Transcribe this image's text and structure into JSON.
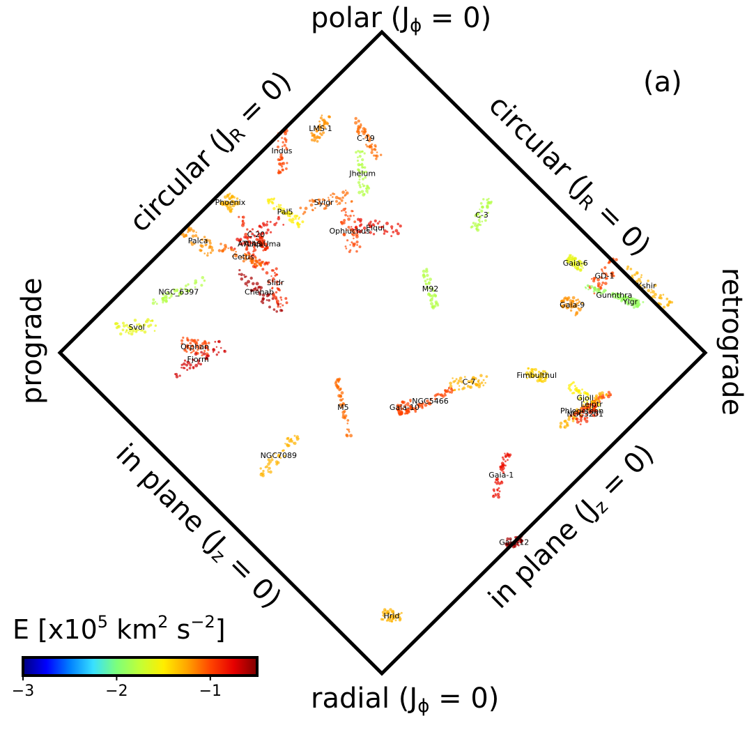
{
  "panel_label": "(a)",
  "edges": {
    "top": {
      "text": "polar",
      "expr": "J",
      "sub": "ϕ",
      "val": " = 0"
    },
    "bottom": {
      "text": "radial",
      "expr": "J",
      "sub": "ϕ",
      "val": " = 0"
    },
    "left": {
      "text": "prograde"
    },
    "right": {
      "text": "retrograde"
    },
    "upper_left": {
      "text": "circular",
      "expr": "J",
      "sub": "R",
      "val": " = 0"
    },
    "upper_right": {
      "text": "circular",
      "expr": "J",
      "sub": "R",
      "val": " = 0"
    },
    "lower_left": {
      "text": "in plane",
      "expr": "J",
      "sub": "z",
      "val": " = 0"
    },
    "lower_right": {
      "text": "in plane",
      "expr": "J",
      "sub": "z",
      "val": " = 0"
    }
  },
  "colorbar": {
    "title_main": "E [x10",
    "title_exp1": "5",
    "title_mid": " km",
    "title_exp2": "2",
    "title_mid2": " s",
    "title_exp3": "−2",
    "title_end": "]",
    "range": [
      -3,
      -0.5
    ],
    "ticks": [
      -3,
      -2,
      -1
    ],
    "tick_labels": [
      "−3",
      "−2",
      "−1"
    ],
    "colormap": [
      "#00007f",
      "#0000ff",
      "#0080ff",
      "#38e0ff",
      "#7dff7a",
      "#c2ff36",
      "#ffee00",
      "#ffa500",
      "#ff4500",
      "#e60000",
      "#7f0000"
    ]
  },
  "chart_data": {
    "type": "scatter",
    "note_axes": "projected action-space diamond; coordinates h in [-1,1] (prograde to retrograde), v in [-1,1] (radial to polar)",
    "streams": [
      {
        "name": "LMS-1",
        "h": -0.19,
        "v": 0.7,
        "E": -1.2
      },
      {
        "name": "C-19",
        "h": -0.05,
        "v": 0.67,
        "E": -1.1
      },
      {
        "name": "Indus",
        "h": -0.31,
        "v": 0.63,
        "E": -1.0
      },
      {
        "name": "Jhelum",
        "h": -0.06,
        "v": 0.56,
        "E": -1.8
      },
      {
        "name": "Phoenix",
        "h": -0.47,
        "v": 0.47,
        "E": -1.3
      },
      {
        "name": "Sylgr",
        "h": -0.18,
        "v": 0.47,
        "E": -1.1
      },
      {
        "name": "Pal5",
        "h": -0.3,
        "v": 0.44,
        "E": -1.5
      },
      {
        "name": "C-3",
        "h": 0.31,
        "v": 0.43,
        "E": -1.8
      },
      {
        "name": "Ophiuchus",
        "h": -0.1,
        "v": 0.38,
        "E": -1.0
      },
      {
        "name": "Elqui",
        "h": -0.02,
        "v": 0.39,
        "E": -0.8
      },
      {
        "name": "C-20",
        "h": -0.39,
        "v": 0.37,
        "E": -0.8
      },
      {
        "name": "Palca",
        "h": -0.57,
        "v": 0.35,
        "E": -1.2
      },
      {
        "name": "AliqaUma",
        "h": -0.37,
        "v": 0.34,
        "E": -0.9
      },
      {
        "name": "ATLAS",
        "h": -0.41,
        "v": 0.34,
        "E": -0.9
      },
      {
        "name": "Cetus",
        "h": -0.43,
        "v": 0.3,
        "E": -1.1
      },
      {
        "name": "Gaia-6",
        "h": 0.6,
        "v": 0.28,
        "E": -1.6
      },
      {
        "name": "GD-1",
        "h": 0.69,
        "v": 0.24,
        "E": -1.0
      },
      {
        "name": "Kshir",
        "h": 0.82,
        "v": 0.21,
        "E": -1.3
      },
      {
        "name": "Slidr",
        "h": -0.33,
        "v": 0.22,
        "E": -0.9
      },
      {
        "name": "M92",
        "h": 0.15,
        "v": 0.2,
        "E": -1.8
      },
      {
        "name": "Chenab",
        "h": -0.38,
        "v": 0.19,
        "E": -0.6
      },
      {
        "name": "NGC_6397",
        "h": -0.63,
        "v": 0.19,
        "E": -1.8
      },
      {
        "name": "Gunnthra",
        "h": 0.72,
        "v": 0.18,
        "E": -1.9
      },
      {
        "name": "Gaia-9",
        "h": 0.59,
        "v": 0.15,
        "E": -1.2
      },
      {
        "name": "Ylgr",
        "h": 0.77,
        "v": 0.16,
        "E": -1.9
      },
      {
        "name": "Svol",
        "h": -0.76,
        "v": 0.08,
        "E": -1.6
      },
      {
        "name": "Orphan",
        "h": -0.58,
        "v": 0.02,
        "E": -1.0
      },
      {
        "name": "Fjorm",
        "h": -0.57,
        "v": -0.02,
        "E": -0.7
      },
      {
        "name": "Fimbulthul",
        "h": 0.48,
        "v": -0.07,
        "E": -1.4
      },
      {
        "name": "C-7",
        "h": 0.27,
        "v": -0.09,
        "E": -1.3
      },
      {
        "name": "NGC5466",
        "h": 0.15,
        "v": -0.15,
        "E": -1.0
      },
      {
        "name": "Gjoll",
        "h": 0.63,
        "v": -0.14,
        "E": -1.5
      },
      {
        "name": "Leiptr",
        "h": 0.65,
        "v": -0.16,
        "E": -1.0
      },
      {
        "name": "Gaia-10",
        "h": 0.07,
        "v": -0.17,
        "E": -1.0
      },
      {
        "name": "M5",
        "h": -0.12,
        "v": -0.17,
        "E": -1.1
      },
      {
        "name": "Phlegethon",
        "h": 0.62,
        "v": -0.18,
        "E": -1.3
      },
      {
        "name": "NGC3201",
        "h": 0.63,
        "v": -0.19,
        "E": -0.9
      },
      {
        "name": "NGC7089",
        "h": -0.32,
        "v": -0.32,
        "E": -1.3
      },
      {
        "name": "Gaia-1",
        "h": 0.37,
        "v": -0.38,
        "E": -0.8
      },
      {
        "name": "Gaia-12",
        "h": 0.41,
        "v": -0.59,
        "E": -0.6
      },
      {
        "name": "Hrid",
        "h": 0.03,
        "v": -0.82,
        "E": -1.3
      }
    ]
  }
}
